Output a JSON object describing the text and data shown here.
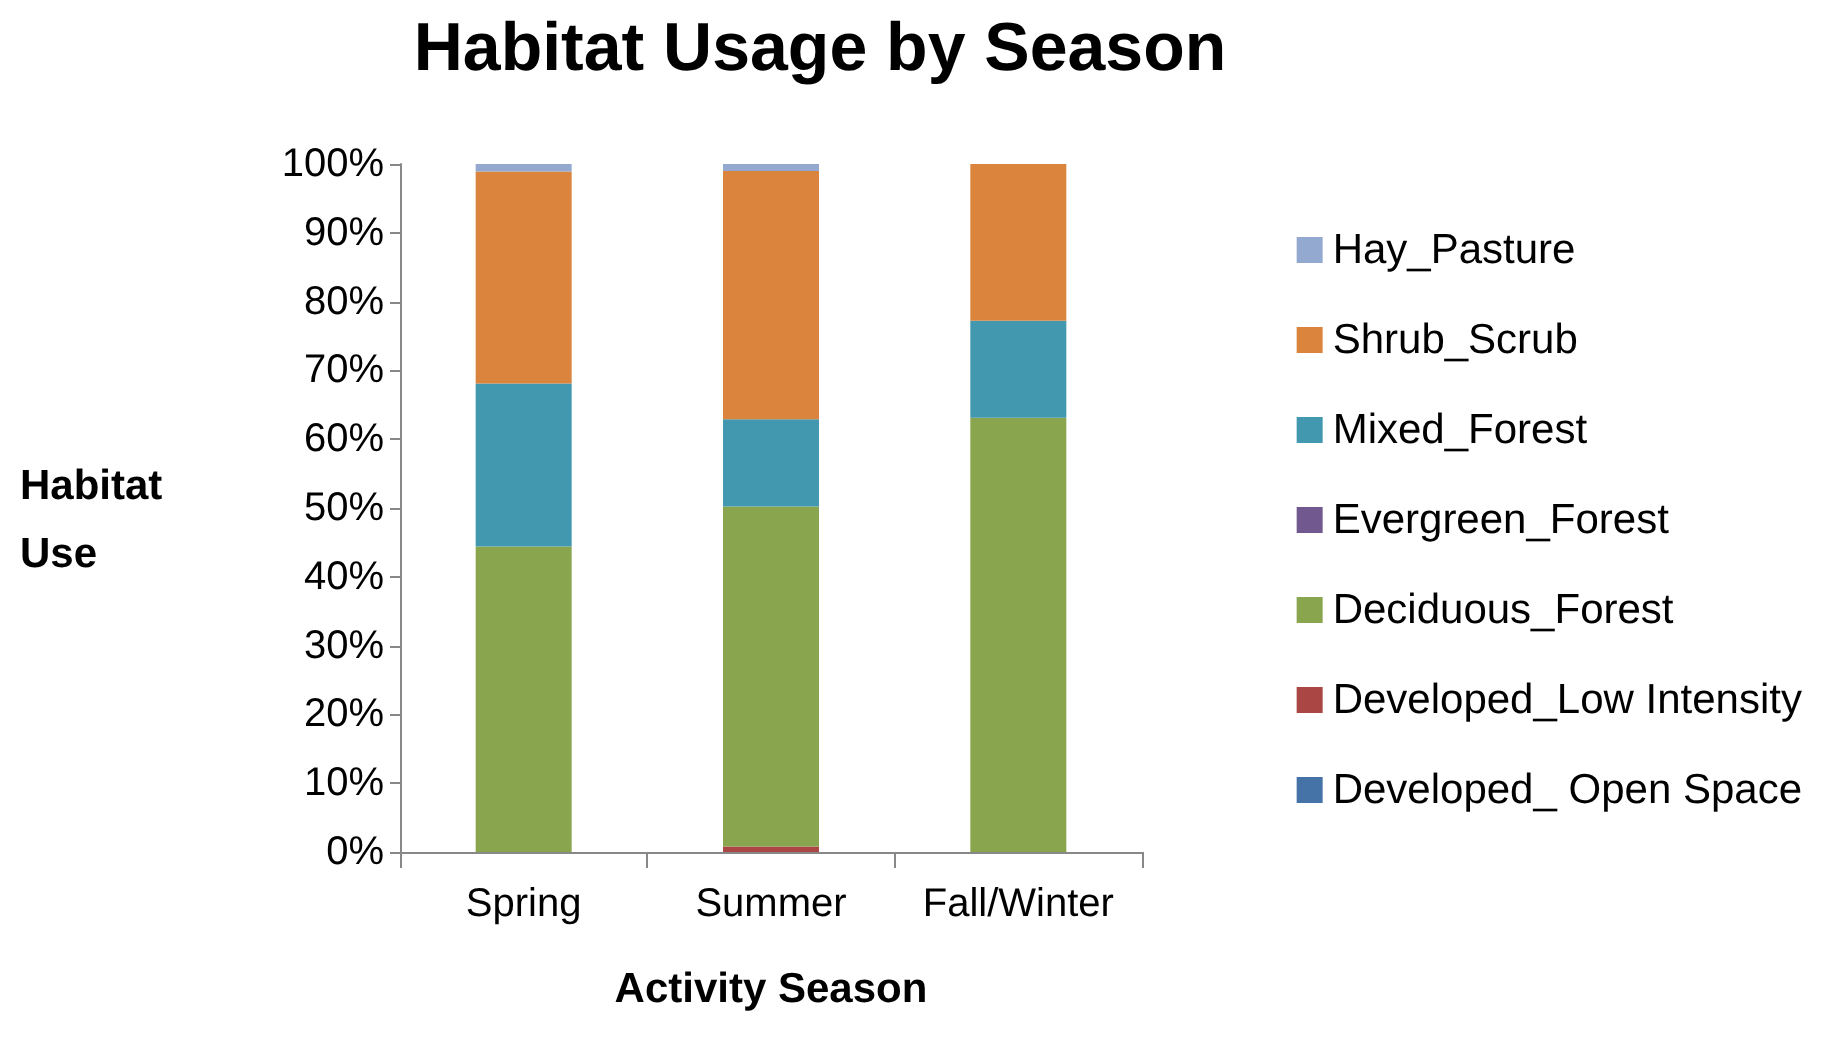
{
  "chart_data": {
    "type": "bar",
    "stacked": true,
    "title": "Habitat Usage by Season",
    "xlabel": "Activity Season",
    "ylabel": "Habitat Use",
    "categories": [
      "Spring",
      "Summer",
      "Fall/Winter"
    ],
    "series": [
      {
        "name": "Developed_ Open Space",
        "color": "#4572a7",
        "values": [
          0,
          0,
          0
        ]
      },
      {
        "name": "Developed_Low Intensity",
        "color": "#aa4643",
        "values": [
          0,
          0.8,
          0
        ]
      },
      {
        "name": "Deciduous_Forest",
        "color": "#89a54e",
        "values": [
          44.4,
          49.4,
          63.1
        ]
      },
      {
        "name": "Evergreen_Forest",
        "color": "#71588f",
        "values": [
          0,
          0,
          0
        ]
      },
      {
        "name": "Mixed_Forest",
        "color": "#4198af",
        "values": [
          23.7,
          12.7,
          14.1
        ]
      },
      {
        "name": "Shrub_Scrub",
        "color": "#db843d",
        "values": [
          30.8,
          36.1,
          22.8
        ]
      },
      {
        "name": "Hay_Pasture",
        "color": "#93a9cf",
        "values": [
          1.1,
          1.0,
          0
        ]
      }
    ],
    "ylim": [
      0,
      100
    ],
    "yticks": [
      {
        "value": 0,
        "label": "0%"
      },
      {
        "value": 10,
        "label": "10%"
      },
      {
        "value": 20,
        "label": "20%"
      },
      {
        "value": 30,
        "label": "30%"
      },
      {
        "value": 40,
        "label": "40%"
      },
      {
        "value": 50,
        "label": "50%"
      },
      {
        "value": 60,
        "label": "60%"
      },
      {
        "value": 70,
        "label": "70%"
      },
      {
        "value": 80,
        "label": "80%"
      },
      {
        "value": 90,
        "label": "90%"
      },
      {
        "value": 100,
        "label": "100%"
      }
    ],
    "grid": false,
    "legend": "right"
  }
}
